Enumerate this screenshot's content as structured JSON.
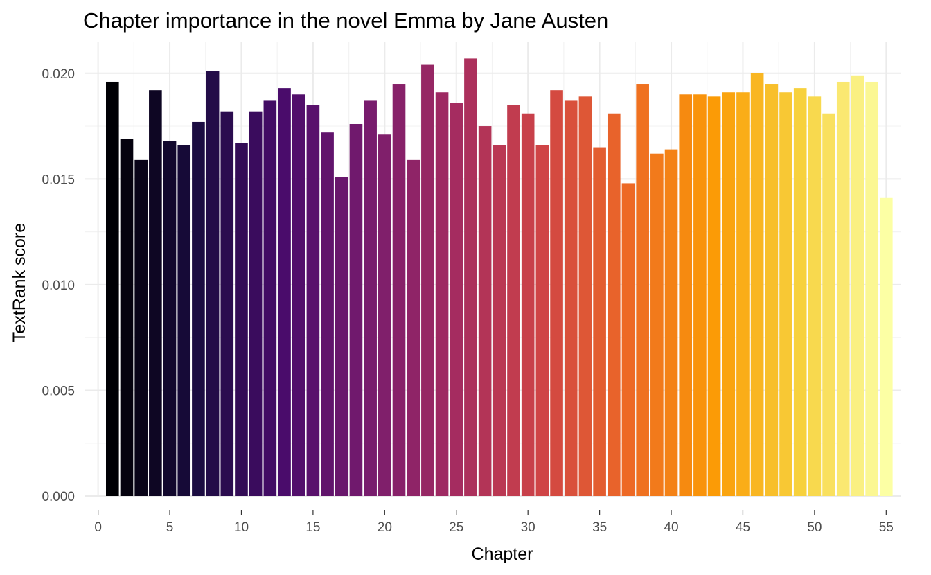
{
  "chart_data": {
    "type": "bar",
    "title": "Chapter importance in the novel Emma by Jane Austen",
    "xlabel": "Chapter",
    "ylabel": "TextRank score",
    "x": [
      1,
      2,
      3,
      4,
      5,
      6,
      7,
      8,
      9,
      10,
      11,
      12,
      13,
      14,
      15,
      16,
      17,
      18,
      19,
      20,
      21,
      22,
      23,
      24,
      25,
      26,
      27,
      28,
      29,
      30,
      31,
      32,
      33,
      34,
      35,
      36,
      37,
      38,
      39,
      40,
      41,
      42,
      43,
      44,
      45,
      46,
      47,
      48,
      49,
      50,
      51,
      52,
      53,
      54,
      55
    ],
    "values": [
      0.0196,
      0.0169,
      0.0159,
      0.0192,
      0.0168,
      0.0166,
      0.0177,
      0.0201,
      0.0182,
      0.0167,
      0.0182,
      0.0187,
      0.0193,
      0.019,
      0.0185,
      0.0172,
      0.0151,
      0.0176,
      0.0187,
      0.0171,
      0.0195,
      0.0159,
      0.0204,
      0.0191,
      0.0186,
      0.0207,
      0.0175,
      0.0166,
      0.0185,
      0.0181,
      0.0166,
      0.0192,
      0.0187,
      0.0189,
      0.0165,
      0.0181,
      0.0148,
      0.0195,
      0.0162,
      0.0164,
      0.019,
      0.019,
      0.0189,
      0.0191,
      0.0191,
      0.02,
      0.0195,
      0.0191,
      0.0193,
      0.0189,
      0.0181,
      0.0196,
      0.0199,
      0.0196,
      0.0141
    ],
    "xlim": [
      -0.9,
      56.0
    ],
    "ylim": [
      0,
      0.0215
    ],
    "x_ticks": [
      0,
      5,
      10,
      15,
      20,
      25,
      30,
      35,
      40,
      45,
      50,
      55
    ],
    "x_tick_labels": [
      "0",
      "5",
      "10",
      "15",
      "20",
      "25",
      "30",
      "35",
      "40",
      "45",
      "50",
      "55"
    ],
    "y_ticks": [
      0,
      0.005,
      0.01,
      0.015,
      0.02
    ],
    "y_tick_labels": [
      "0.000",
      "0.005",
      "0.010",
      "0.015",
      "0.020"
    ],
    "grid": true,
    "legend": "none",
    "colormap": "inferno",
    "colormap_stops": [
      "#000004",
      "#1b0c41",
      "#4a0c6b",
      "#781c6d",
      "#a52c60",
      "#cf4446",
      "#ed6925",
      "#fb9b06",
      "#f7d13d",
      "#fcffa4"
    ]
  }
}
